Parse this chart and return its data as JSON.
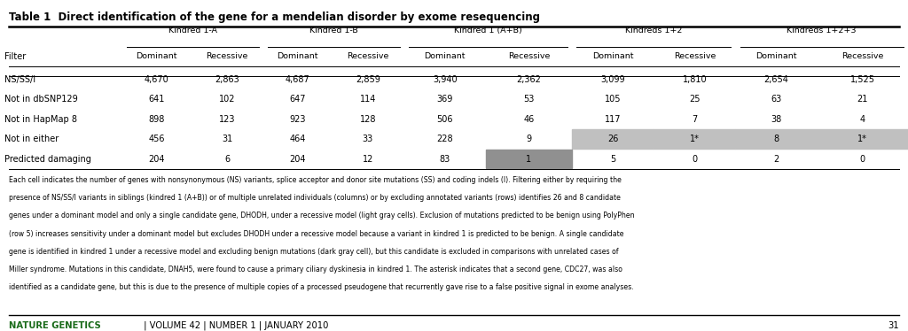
{
  "title": "Table 1  Direct identification of the gene for a mendelian disorder by exome resequencing",
  "col_groups": [
    {
      "label": "Kindred 1-A",
      "span": [
        1,
        2
      ]
    },
    {
      "label": "Kindred 1-B",
      "span": [
        3,
        4
      ]
    },
    {
      "label": "Kindred 1 (A+B)",
      "span": [
        5,
        6
      ]
    },
    {
      "label": "Kindreds 1+2",
      "span": [
        7,
        8
      ]
    },
    {
      "label": "Kindreds 1+2+3",
      "span": [
        9,
        10
      ]
    }
  ],
  "col_headers": [
    "Filter",
    "Dominant",
    "Recessive",
    "Dominant",
    "Recessive",
    "Dominant",
    "Recessive",
    "Dominant",
    "Recessive",
    "Dominant",
    "Recessive"
  ],
  "rows": [
    {
      "label": "NS/SS/I",
      "values": [
        "4,670",
        "2,863",
        "4,687",
        "2,859",
        "3,940",
        "2,362",
        "3,099",
        "1,810",
        "2,654",
        "1,525"
      ]
    },
    {
      "label": "Not in dbSNP129",
      "values": [
        "641",
        "102",
        "647",
        "114",
        "369",
        "53",
        "105",
        "25",
        "63",
        "21"
      ]
    },
    {
      "label": "Not in HapMap 8",
      "values": [
        "898",
        "123",
        "923",
        "128",
        "506",
        "46",
        "117",
        "7",
        "38",
        "4"
      ]
    },
    {
      "label": "Not in either",
      "values": [
        "456",
        "31",
        "464",
        "33",
        "228",
        "9",
        "26",
        "1*",
        "8",
        "1*"
      ]
    },
    {
      "label": "Predicted damaging",
      "values": [
        "204",
        "6",
        "204",
        "12",
        "83",
        "1",
        "5",
        "0",
        "2",
        "0"
      ]
    }
  ],
  "light_gray_rows_cols": [
    [
      3,
      [
        6,
        7,
        8,
        9
      ]
    ]
  ],
  "dark_gray_rows_cols": [
    [
      4,
      [
        5
      ]
    ]
  ],
  "light_gray": "#c0c0c0",
  "dark_gray": "#909090",
  "footer_lines": [
    "Each cell indicates the number of genes with nonsynonymous (NS) variants, splice acceptor and donor site mutations (SS) and coding indels (I). Filtering either by requiring the",
    "presence of NS/SS/I variants in siblings (kindred 1 (A+B)) or of multiple unrelated individuals (columns) or by excluding annotated variants (rows) identifies 26 and 8 candidate",
    "genes under a dominant model and only a single candidate gene, DHODH, under a recessive model (light gray cells). Exclusion of mutations predicted to be benign using PolyPhen",
    "(row 5) increases sensitivity under a dominant model but excludes DHODH under a recessive model because a variant in kindred 1 is predicted to be benign. A single candidate",
    "gene is identified in kindred 1 under a recessive model and excluding benign mutations (dark gray cell), but this candidate is excluded in comparisons with unrelated cases of",
    "Miller syndrome. Mutations in this candidate, DNAH5, were found to cause a primary ciliary dyskinesia in kindred 1. The asterisk indicates that a second gene, CDC27, was also",
    "identified as a candidate gene, but this is due to the presence of multiple copies of a processed pseudogene that recurrently gave rise to a false positive signal in exome analyses."
  ],
  "bottom_left": "NATURE GENETICS",
  "bottom_middle": " | VOLUME 42 | NUMBER 1 | JANUARY 2010",
  "bottom_right": "31",
  "bg_color": "#ffffff",
  "nature_genetics_color": "#1a6b1a"
}
